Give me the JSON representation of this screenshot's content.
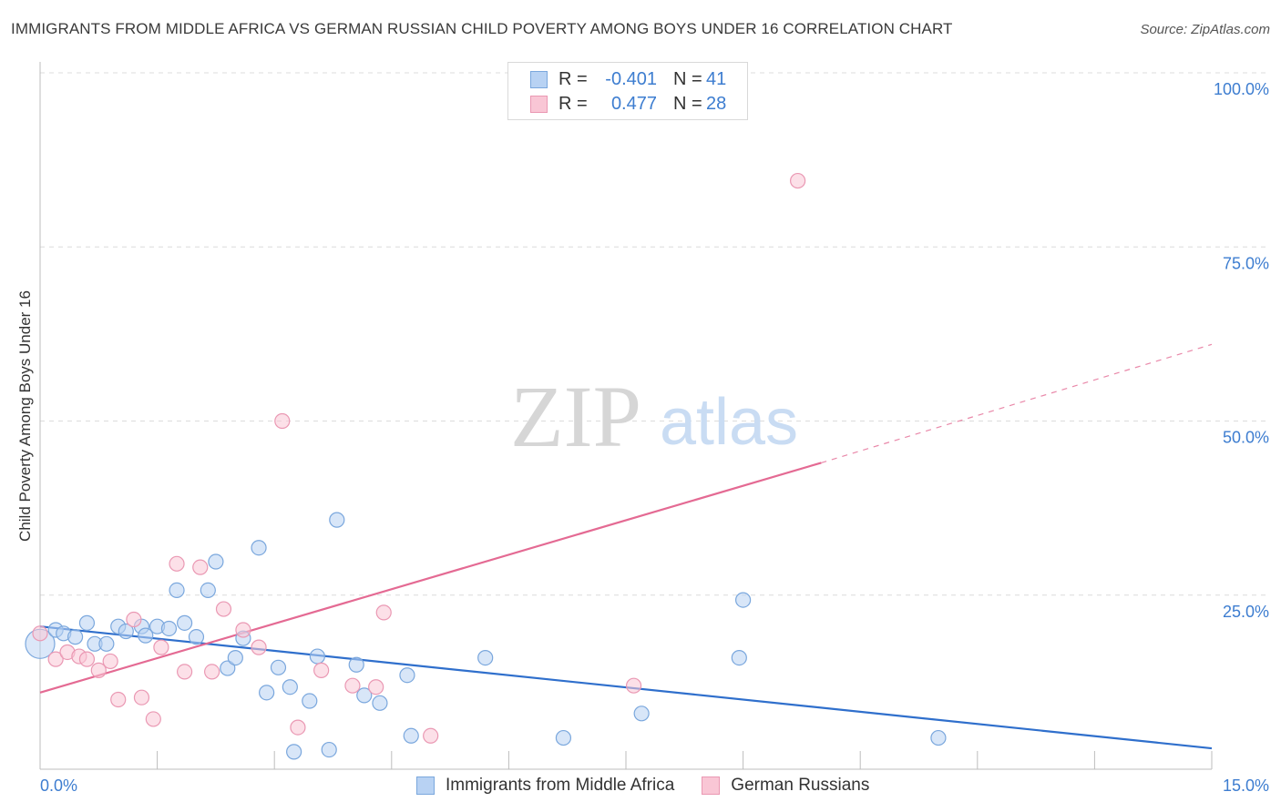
{
  "header": {
    "title": "IMMIGRANTS FROM MIDDLE AFRICA VS GERMAN RUSSIAN CHILD POVERTY AMONG BOYS UNDER 16 CORRELATION CHART",
    "source": "Source: ZipAtlas.com"
  },
  "watermark": {
    "zip": "ZIP",
    "atlas": "atlas"
  },
  "legend_top": {
    "rows": [
      {
        "r_label": "R =",
        "r_value": "-0.401",
        "n_label": "N =",
        "n_value": "41"
      },
      {
        "r_label": "R =",
        "r_value": "0.477",
        "n_label": "N =",
        "n_value": "28"
      }
    ]
  },
  "legend_bottom": {
    "items": [
      {
        "label": "Immigrants from Middle Africa"
      },
      {
        "label": "German Russians"
      }
    ]
  },
  "colors": {
    "blue_fill": "#b8d2f3",
    "blue_stroke": "#7aa7dd",
    "blue_line": "#2f6fcc",
    "pink_fill": "#f9c6d5",
    "pink_stroke": "#ea98b3",
    "pink_line": "#e46a93",
    "tick_label": "#3d7dd0",
    "grid": "#dcdcdc"
  },
  "chart_data": {
    "type": "scatter",
    "title": "IMMIGRANTS FROM MIDDLE AFRICA VS GERMAN RUSSIAN CHILD POVERTY AMONG BOYS UNDER 16 CORRELATION CHART",
    "xlabel": "",
    "ylabel": "Child Poverty Among Boys Under 16",
    "xlim": [
      0,
      15
    ],
    "ylim": [
      0,
      100
    ],
    "x_tick_labels": [
      "0.0%",
      "15.0%"
    ],
    "y_ticks": [
      25,
      50,
      75,
      100
    ],
    "y_tick_labels": [
      "25.0%",
      "50.0%",
      "75.0%",
      "100.0%"
    ],
    "grid": true,
    "series": [
      {
        "name": "Immigrants from Middle Africa",
        "color": "blue",
        "points": [
          [
            0.0,
            18.0
          ],
          [
            0.2,
            20.0
          ],
          [
            0.3,
            19.5
          ],
          [
            0.45,
            19.0
          ],
          [
            0.6,
            21.0
          ],
          [
            0.7,
            18.0
          ],
          [
            0.85,
            18.0
          ],
          [
            1.0,
            20.5
          ],
          [
            1.1,
            19.8
          ],
          [
            1.3,
            20.5
          ],
          [
            1.35,
            19.2
          ],
          [
            1.5,
            20.5
          ],
          [
            1.65,
            20.2
          ],
          [
            1.75,
            25.7
          ],
          [
            1.85,
            21.0
          ],
          [
            2.0,
            19.0
          ],
          [
            2.15,
            25.7
          ],
          [
            2.25,
            29.8
          ],
          [
            2.4,
            14.5
          ],
          [
            2.5,
            16.0
          ],
          [
            2.6,
            18.8
          ],
          [
            2.8,
            31.8
          ],
          [
            2.9,
            11.0
          ],
          [
            3.05,
            14.6
          ],
          [
            3.2,
            11.8
          ],
          [
            3.25,
            2.5
          ],
          [
            3.45,
            9.8
          ],
          [
            3.55,
            16.2
          ],
          [
            3.7,
            2.8
          ],
          [
            3.8,
            35.8
          ],
          [
            4.05,
            15.0
          ],
          [
            4.15,
            10.6
          ],
          [
            4.35,
            9.5
          ],
          [
            4.7,
            13.5
          ],
          [
            4.75,
            4.8
          ],
          [
            5.7,
            16.0
          ],
          [
            6.7,
            4.5
          ],
          [
            7.7,
            8.0
          ],
          [
            8.95,
            16.0
          ],
          [
            9.0,
            24.3
          ],
          [
            11.5,
            4.5
          ]
        ]
      },
      {
        "name": "German Russians",
        "color": "pink",
        "points": [
          [
            0.0,
            19.5
          ],
          [
            0.2,
            15.8
          ],
          [
            0.35,
            16.8
          ],
          [
            0.5,
            16.2
          ],
          [
            0.6,
            15.8
          ],
          [
            0.75,
            14.2
          ],
          [
            0.9,
            15.5
          ],
          [
            1.0,
            10.0
          ],
          [
            1.2,
            21.5
          ],
          [
            1.3,
            10.3
          ],
          [
            1.45,
            7.2
          ],
          [
            1.55,
            17.5
          ],
          [
            1.75,
            29.5
          ],
          [
            1.85,
            14.0
          ],
          [
            2.05,
            29.0
          ],
          [
            2.2,
            14.0
          ],
          [
            2.35,
            23.0
          ],
          [
            2.6,
            20.0
          ],
          [
            2.8,
            17.5
          ],
          [
            3.1,
            50.0
          ],
          [
            3.3,
            6.0
          ],
          [
            3.6,
            14.2
          ],
          [
            4.0,
            12.0
          ],
          [
            4.3,
            11.8
          ],
          [
            4.4,
            22.5
          ],
          [
            5.0,
            4.8
          ],
          [
            7.6,
            12.0
          ],
          [
            9.7,
            84.5
          ]
        ]
      }
    ],
    "trend_lines": [
      {
        "series": "Immigrants from Middle Africa",
        "x_start": 0,
        "y_start": 20.5,
        "x_end": 15,
        "y_end": 3.0,
        "style": "solid"
      },
      {
        "series": "German Russians",
        "x_start": 0,
        "y_start": 11.0,
        "x_end": 10.0,
        "y_end": 44.0,
        "style": "solid",
        "dashed_extension_to": [
          15,
          61.0
        ]
      }
    ]
  }
}
